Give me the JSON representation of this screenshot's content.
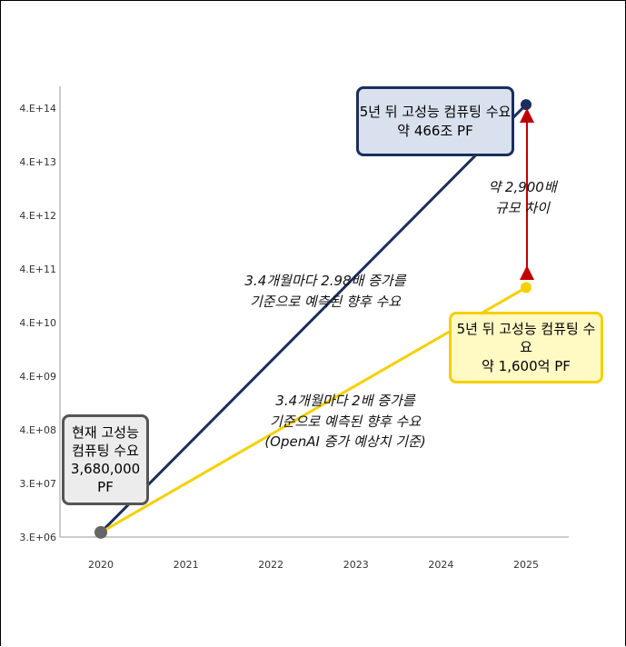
{
  "chart_data": {
    "type": "line",
    "x": [
      "2020",
      "2021",
      "2022",
      "2023",
      "2024",
      "2025"
    ],
    "y_ticks": [
      "3.E+06",
      "3.E+07",
      "4.E+08",
      "4.E+09",
      "4.E+10",
      "4.E+11",
      "4.E+12",
      "4.E+13",
      "4.E+14"
    ],
    "y_scale": "log",
    "series": [
      {
        "key": "high",
        "color": "#1b2e5e",
        "start": {
          "x": "2020",
          "y": 3680000
        },
        "end": {
          "x": "2025",
          "y": 466000000000000
        }
      },
      {
        "key": "low",
        "color": "#f5d000",
        "start": {
          "x": "2020",
          "y": 3680000
        },
        "end": {
          "x": "2025",
          "y": 160000000000
        }
      }
    ],
    "start_marker_color": "#666666"
  },
  "annotations": {
    "current": [
      "현재 고성능",
      "컴퓨팅 수요",
      "3,680,000 PF"
    ],
    "blue_box": [
      "5년 뒤 고성능 컴퓨팅 수요",
      "약 466조 PF"
    ],
    "yellow_box": [
      "5년 뒤 고성능 컴퓨팅 수요",
      "약 1,600억 PF"
    ],
    "blue_note": [
      "3.4개월마다 2.98배 증가를",
      "기준으로 예측된 향후 수요"
    ],
    "yellow_note": [
      "3.4개월마다 2배 증가를",
      "기준으로 예측된 향후 수요",
      "(OpenAI 증가 예상치 기준)"
    ],
    "ratio_note": [
      "약 2,900배",
      "규모 차이"
    ],
    "ratio_arrow_color": "#c00000"
  }
}
